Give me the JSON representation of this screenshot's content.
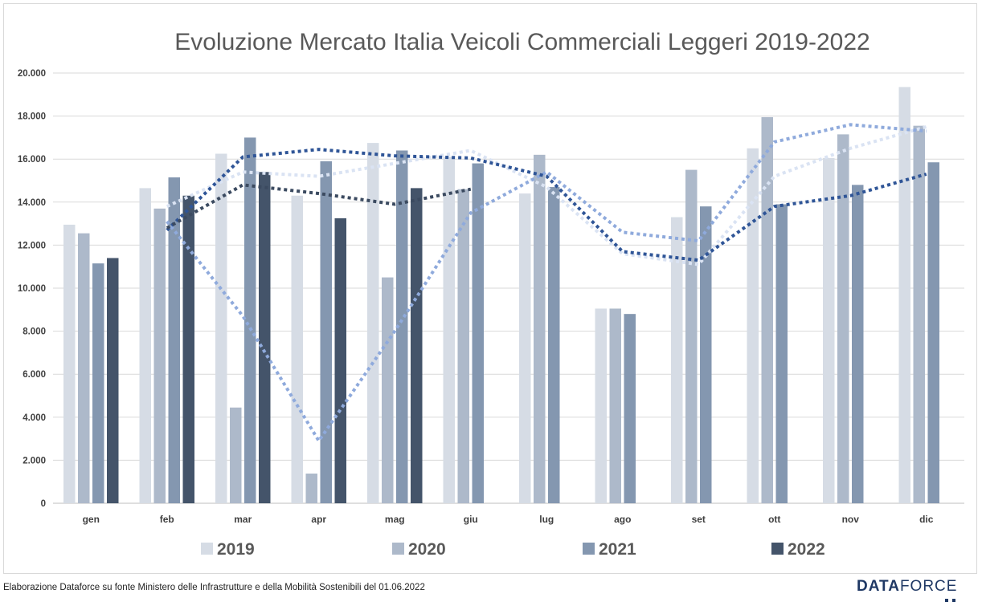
{
  "chart_data": {
    "type": "bar",
    "title": "Evoluzione Mercato Italia Veicoli Commerciali Leggeri 2019-2022",
    "categories": [
      "gen",
      "feb",
      "mar",
      "apr",
      "mag",
      "giu",
      "lug",
      "ago",
      "set",
      "ott",
      "nov",
      "dic"
    ],
    "ylim": [
      0,
      20000
    ],
    "yticks": [
      0,
      2000,
      4000,
      6000,
      8000,
      10000,
      12000,
      14000,
      16000,
      18000,
      20000
    ],
    "ytick_labels": [
      "0",
      "2.000",
      "4.000",
      "6.000",
      "8.000",
      "10.000",
      "12.000",
      "14.000",
      "16.000",
      "18.000",
      "20.000"
    ],
    "grid": true,
    "legend_position": "bottom",
    "series": [
      {
        "name": "2019",
        "color": "#d6dce5",
        "values": [
          12950,
          14650,
          16250,
          14300,
          16750,
          16100,
          14400,
          9050,
          13300,
          16500,
          16050,
          19350
        ]
      },
      {
        "name": "2020",
        "color": "#adb9ca",
        "values": [
          12550,
          13700,
          4450,
          1380,
          10500,
          14600,
          16200,
          9050,
          15500,
          17950,
          17150,
          17550
        ]
      },
      {
        "name": "2021",
        "color": "#8497b0",
        "values": [
          11150,
          15150,
          17000,
          15900,
          16400,
          15800,
          14700,
          8800,
          13800,
          13900,
          14800,
          15850
        ]
      },
      {
        "name": "2022",
        "color": "#44546a",
        "values": [
          11400,
          14300,
          15400,
          13250,
          14650,
          null,
          null,
          null,
          null,
          null,
          null,
          null
        ]
      }
    ],
    "trend_lines": [
      {
        "series": "2019",
        "color": "#dae3f3",
        "from": 1,
        "values": [
          13800,
          15400,
          15200,
          15800,
          16400,
          14700,
          11600,
          11100,
          15200,
          16500,
          17500
        ]
      },
      {
        "series": "2020",
        "color": "#8faadc",
        "from": 1,
        "values": [
          13100,
          8700,
          2900,
          8000,
          13500,
          15400,
          12600,
          12200,
          16800,
          17600,
          17300
        ]
      },
      {
        "series": "2021",
        "color": "#2f5597",
        "from": 1,
        "values": [
          12700,
          16100,
          16450,
          16150,
          16050,
          15200,
          11700,
          11300,
          13800,
          14300,
          15300
        ]
      },
      {
        "series": "2022",
        "color": "#3b4a60",
        "from": 1,
        "values": [
          12800,
          14800,
          14400,
          13900,
          14600
        ]
      }
    ]
  },
  "footer": {
    "source_note": "Elaborazione Dataforce su fonte Ministero delle Infrastrutture e della Mobilità Sostenibili del 01.06.2022"
  },
  "brand": {
    "part1": "DATA",
    "part2": "FORCE"
  }
}
